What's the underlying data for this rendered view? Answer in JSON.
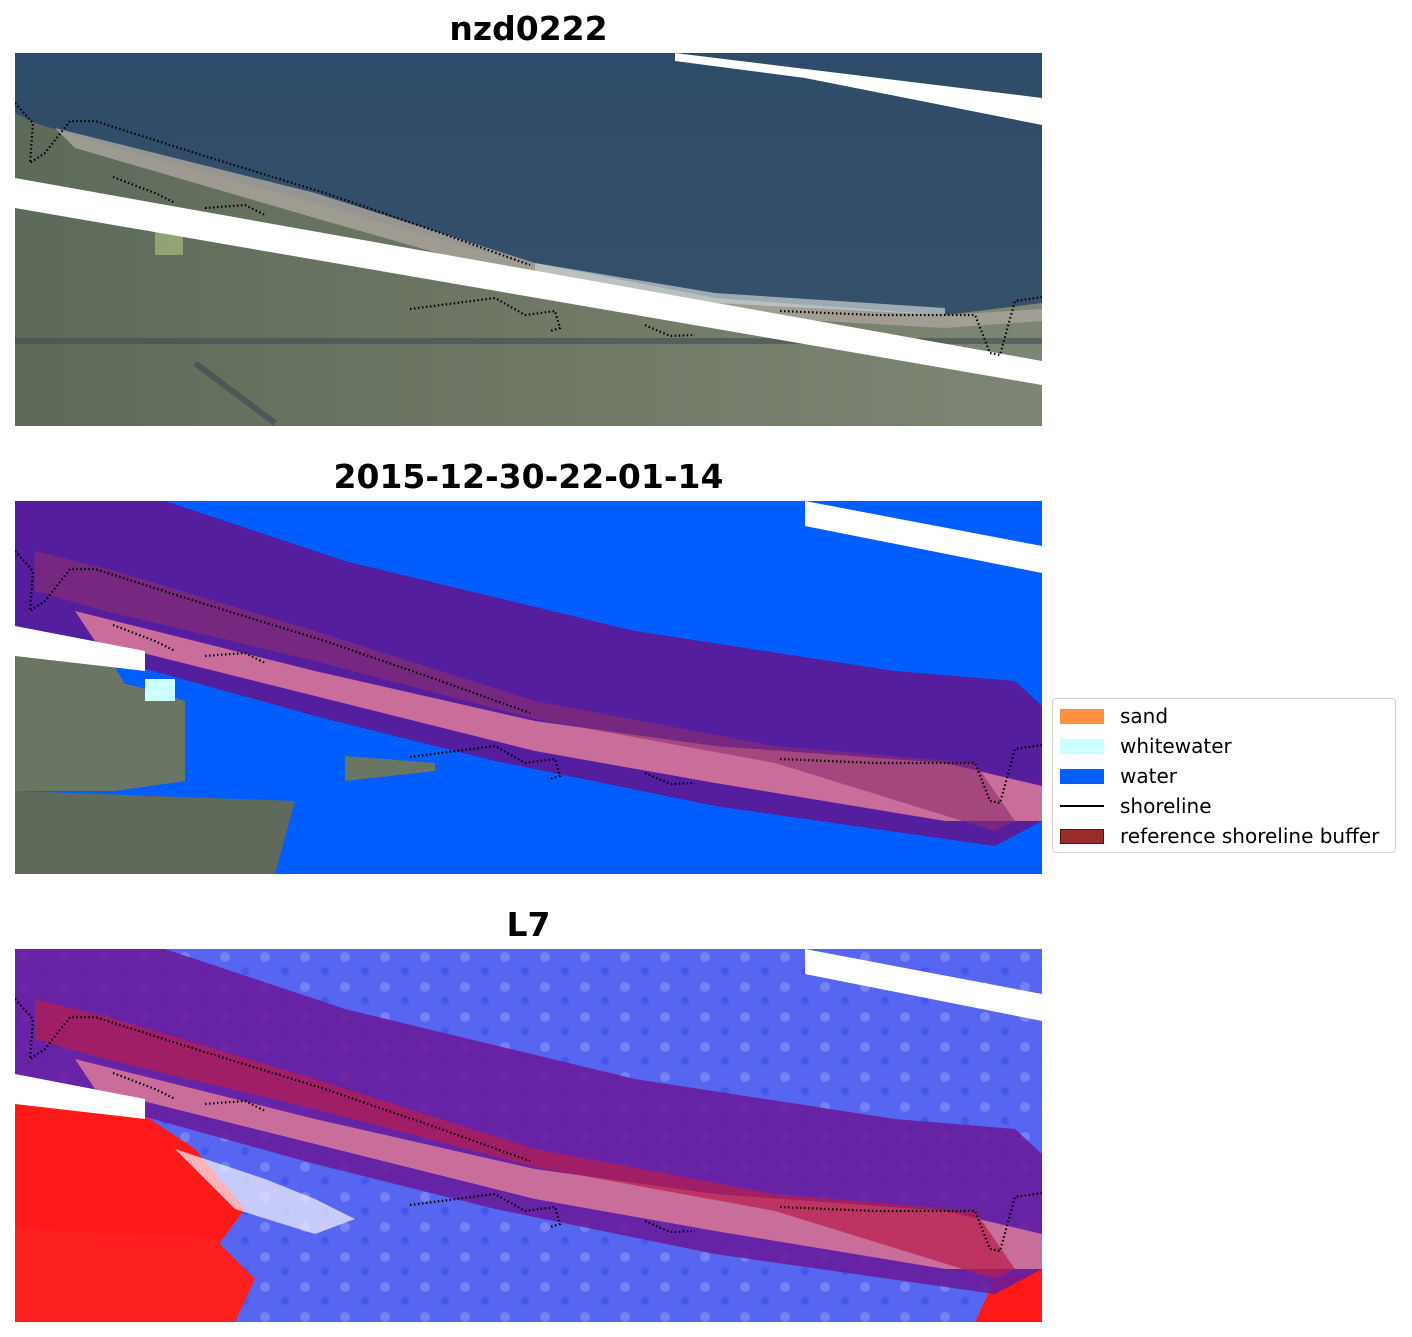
{
  "panels": [
    {
      "title": "nzd0222",
      "view": "rgb-image"
    },
    {
      "title": "2015-12-30-22-01-14",
      "view": "classified-image"
    },
    {
      "title": "L7",
      "view": "water-index-image"
    }
  ],
  "legend": {
    "items": [
      {
        "label": "sand",
        "color": "#ff9040",
        "kind": "patch"
      },
      {
        "label": "whitewater",
        "color": "#ccffff",
        "kind": "patch"
      },
      {
        "label": "water",
        "color": "#005eff",
        "kind": "patch"
      },
      {
        "label": "shoreline",
        "color": "#000000",
        "kind": "line"
      },
      {
        "label": "reference shoreline buffer",
        "color": "#992b2b",
        "kind": "patch"
      }
    ]
  },
  "colors": {
    "ocean": "#2f4d6a",
    "land": "#6a7563",
    "water_class": "#005eff",
    "buffer_overlay": "#6a1a9a",
    "buffer_pink": "#c96d9a",
    "mndwi_water": "#5766f0",
    "mndwi_land": "#ff1a1a"
  }
}
